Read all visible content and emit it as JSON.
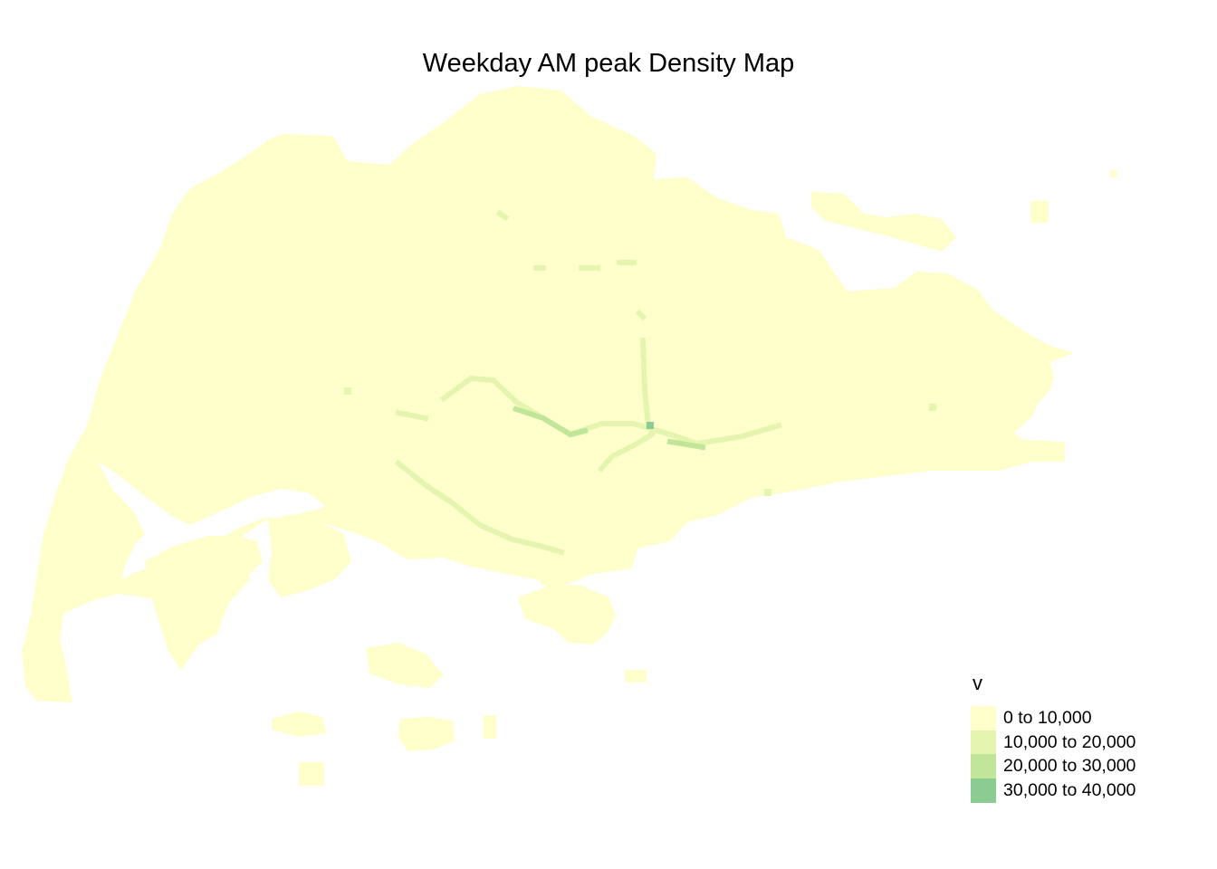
{
  "title": "Weekday AM peak Density Map",
  "legend": {
    "title": "v",
    "classes": [
      {
        "label": "0 to 10,000",
        "color": "#ffffcc"
      },
      {
        "label": "10,000 to 20,000",
        "color": "#e5f5b0"
      },
      {
        "label": "20,000 to 30,000",
        "color": "#c2e699"
      },
      {
        "label": "30,000 to 40,000",
        "color": "#8acc91"
      }
    ]
  },
  "map": {
    "type": "choropleth-grid",
    "fill_color": "#ffffcc",
    "line_color_class_1": "#e5f5b0",
    "line_color_class_2": "#c2e699",
    "line_color_class_3": "#8acc91"
  }
}
